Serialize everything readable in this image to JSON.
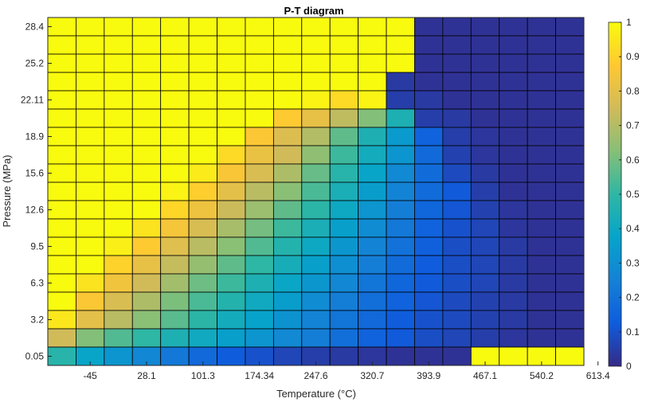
{
  "chart_data": {
    "type": "heatmap",
    "title": "P-T diagram",
    "xlabel": "Temperature (°C)",
    "ylabel": "Pressure (MPa)",
    "x_tick_labels": [
      "-45",
      "28.1",
      "101.3",
      "174.34",
      "247.6",
      "320.7",
      "393.9",
      "467.1",
      "540.2",
      "613.4"
    ],
    "y_tick_labels": [
      "28.4",
      "25.2",
      "22.11",
      "18.9",
      "15.6",
      "12.6",
      "9.5",
      "6.3",
      "3.2",
      "0.05"
    ],
    "colorbar": {
      "min": 0,
      "max": 1,
      "tick_labels": [
        "1",
        "0.9",
        "0.8",
        "0.7",
        "0.6",
        "0.5",
        "0.4",
        "0.3",
        "0.2",
        "0.1",
        "0"
      ],
      "colormap": "parula"
    },
    "n_cols": 19,
    "n_rows": 19,
    "values_top_to_bottom": [
      [
        1,
        1,
        1,
        1,
        1,
        1,
        1,
        1,
        1,
        1,
        1,
        1,
        1,
        0.02,
        0.02,
        0.02,
        0.02,
        0.02,
        0.02
      ],
      [
        1,
        1,
        1,
        1,
        1,
        1,
        1,
        1,
        1,
        1,
        1,
        1,
        1,
        0.02,
        0.02,
        0.02,
        0.02,
        0.02,
        0.02
      ],
      [
        1,
        1,
        1,
        1,
        1,
        1,
        1,
        1,
        1,
        1,
        1,
        1,
        1,
        0.02,
        0.02,
        0.02,
        0.02,
        0.02,
        0.02
      ],
      [
        1,
        1,
        1,
        1,
        1,
        1,
        1,
        1,
        1,
        1,
        1,
        1,
        0.04,
        0.02,
        0.02,
        0.02,
        0.02,
        0.02,
        0.02
      ],
      [
        1,
        1,
        1,
        1,
        1,
        1,
        1,
        1,
        1,
        0.98,
        0.92,
        0.98,
        0.05,
        0.04,
        0.02,
        0.02,
        0.02,
        0.02,
        0.02
      ],
      [
        1,
        1,
        1,
        1,
        1,
        1,
        1,
        1,
        0.88,
        0.81,
        0.72,
        0.62,
        0.45,
        0.05,
        0.04,
        0.02,
        0.02,
        0.02,
        0.02
      ],
      [
        1,
        1,
        1,
        1,
        1,
        1,
        1,
        0.87,
        0.78,
        0.7,
        0.57,
        0.45,
        0.34,
        0.15,
        0.05,
        0.03,
        0.02,
        0.02,
        0.02
      ],
      [
        1,
        1,
        1,
        1,
        1,
        1,
        0.92,
        0.82,
        0.75,
        0.64,
        0.52,
        0.42,
        0.32,
        0.17,
        0.06,
        0.03,
        0.02,
        0.02,
        0.02
      ],
      [
        1,
        1,
        1,
        1,
        1,
        0.96,
        0.86,
        0.77,
        0.69,
        0.58,
        0.48,
        0.38,
        0.28,
        0.18,
        0.08,
        0.04,
        0.02,
        0.02,
        0.02
      ],
      [
        1,
        1,
        1,
        1,
        0.98,
        0.89,
        0.8,
        0.71,
        0.63,
        0.54,
        0.44,
        0.35,
        0.26,
        0.18,
        0.12,
        0.05,
        0.02,
        0.02,
        0.02
      ],
      [
        1,
        1,
        1,
        1,
        0.91,
        0.83,
        0.74,
        0.66,
        0.57,
        0.49,
        0.4,
        0.32,
        0.24,
        0.16,
        0.11,
        0.06,
        0.03,
        0.02,
        0.02
      ],
      [
        1,
        1,
        1,
        0.94,
        0.85,
        0.77,
        0.68,
        0.6,
        0.52,
        0.44,
        0.36,
        0.29,
        0.22,
        0.15,
        0.1,
        0.07,
        0.03,
        0.02,
        0.02
      ],
      [
        1,
        1,
        0.97,
        0.88,
        0.79,
        0.71,
        0.63,
        0.55,
        0.47,
        0.4,
        0.33,
        0.26,
        0.2,
        0.14,
        0.09,
        0.07,
        0.04,
        0.02,
        0.02
      ],
      [
        1,
        1,
        0.9,
        0.81,
        0.73,
        0.65,
        0.57,
        0.5,
        0.43,
        0.36,
        0.3,
        0.24,
        0.18,
        0.13,
        0.09,
        0.07,
        0.04,
        0.02,
        0.02
      ],
      [
        1,
        0.94,
        0.84,
        0.75,
        0.67,
        0.59,
        0.52,
        0.45,
        0.39,
        0.33,
        0.27,
        0.21,
        0.16,
        0.12,
        0.09,
        0.07,
        0.04,
        0.02,
        0.02
      ],
      [
        1,
        0.87,
        0.77,
        0.69,
        0.61,
        0.54,
        0.47,
        0.41,
        0.35,
        0.29,
        0.24,
        0.19,
        0.15,
        0.11,
        0.08,
        0.06,
        0.04,
        0.02,
        0.02
      ],
      [
        0.95,
        0.8,
        0.71,
        0.63,
        0.56,
        0.49,
        0.42,
        0.37,
        0.31,
        0.26,
        0.21,
        0.17,
        0.13,
        0.1,
        0.08,
        0.06,
        0.04,
        0.02,
        0.02
      ],
      [
        0.75,
        0.62,
        0.55,
        0.5,
        0.45,
        0.41,
        0.36,
        0.32,
        0.28,
        0.24,
        0.19,
        0.15,
        0.12,
        0.09,
        0.07,
        0.05,
        0.03,
        0.02,
        0.02
      ],
      [
        0.48,
        0.38,
        0.32,
        0.27,
        0.22,
        0.17,
        0.13,
        0.1,
        0.07,
        0.05,
        0.04,
        0.03,
        0.02,
        0.02,
        0.02,
        1,
        1,
        1,
        1
      ]
    ]
  }
}
